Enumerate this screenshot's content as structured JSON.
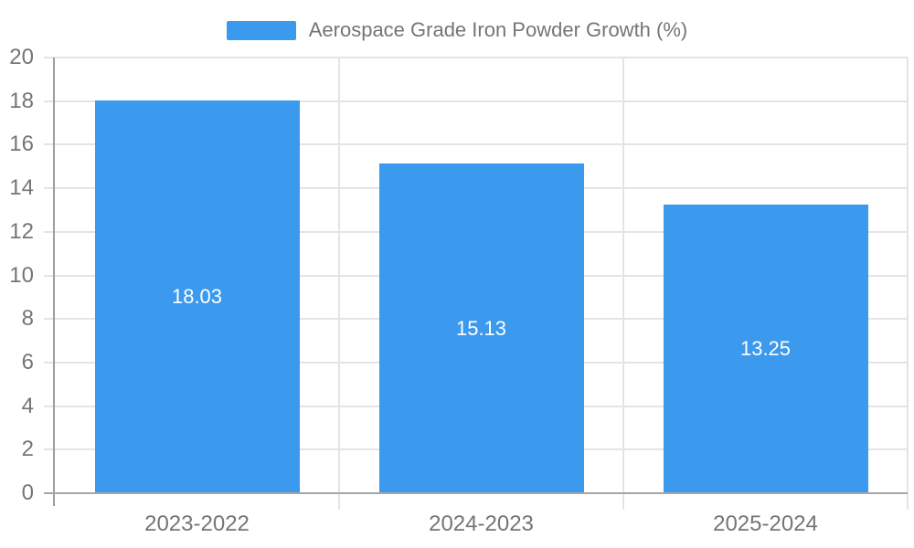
{
  "legend": {
    "label": "Aerospace Grade Iron Powder Growth (%)"
  },
  "colors": {
    "bar": "#3b99ee",
    "grid": "#e4e4e4",
    "axis": "#a0a0a0",
    "tick_text": "#757575",
    "value_label_text": "#ffffff",
    "background": "#ffffff"
  },
  "chart_data": {
    "type": "bar",
    "title": "Aerospace Grade Iron Powder Growth (%)",
    "categories": [
      "2023-2022",
      "2024-2023",
      "2025-2024"
    ],
    "values": [
      18.03,
      15.13,
      13.25
    ],
    "value_labels": [
      "18.03",
      "15.13",
      "13.25"
    ],
    "series": [
      {
        "name": "Aerospace Grade Iron Powder Growth (%)",
        "values": [
          18.03,
          15.13,
          13.25
        ]
      }
    ],
    "xlabel": "",
    "ylabel": "",
    "ylim": [
      0,
      20
    ],
    "ytick_step": 2,
    "yticks": [
      0,
      2,
      4,
      6,
      8,
      10,
      12,
      14,
      16,
      18,
      20
    ],
    "grid": true,
    "legend_position": "top-center",
    "value_label_position": "inside-center"
  }
}
